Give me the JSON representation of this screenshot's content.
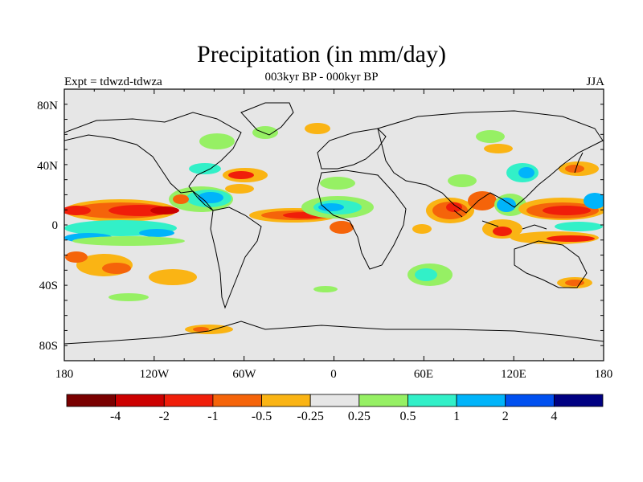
{
  "title": "Precipitation (in mm/day)",
  "subtitle": "003kyr BP - 000kyr BP",
  "left_label": "Expt = tdwzd-tdwza",
  "right_label": "JJA",
  "axes": {
    "lat_ticks": [
      "80N",
      "40N",
      "0",
      "40S",
      "80S"
    ],
    "lon_ticks": [
      "180",
      "120W",
      "60W",
      "0",
      "60E",
      "120E",
      "180"
    ]
  },
  "colorbar": {
    "colors": [
      "#7a0000",
      "#cc0000",
      "#f01e0a",
      "#f5640a",
      "#fab414",
      "#e6e6e6",
      "#96f064",
      "#32f0c8",
      "#00b4fa",
      "#0050f0",
      "#000082"
    ],
    "labels": [
      "-4",
      "-2",
      "-1",
      "-0.5",
      "-0.25",
      "0.25",
      "0.5",
      "1",
      "2",
      "4"
    ]
  },
  "map": {
    "background": "#e6e6e6",
    "colors": {
      "dark_red": "#cc0000",
      "red": "#f01e0a",
      "orange": "#f5640a",
      "yellow": "#fab414",
      "green": "#96f064",
      "cyan": "#32f0c8",
      "light_blue": "#00b4fa",
      "blue": "#0050f0"
    }
  }
}
